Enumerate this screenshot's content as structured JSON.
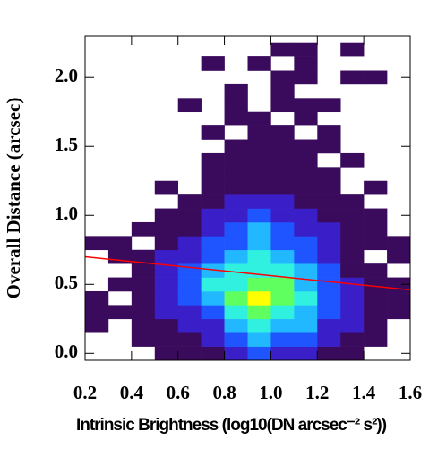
{
  "chart_data": {
    "type": "heatmap",
    "xlabel": "Intrinsic Brightness (log10(DN arcsec⁻² s²))",
    "ylabel": "Overall Distance (arcsec)",
    "xlim": [
      0.2,
      1.6
    ],
    "ylim": [
      -0.05,
      2.3
    ],
    "xticks": [
      0.2,
      0.4,
      0.6,
      0.8,
      {
        "value": 1,
        "label": "1.0"
      },
      1.2,
      1.4,
      1.6
    ],
    "yticks": [
      {
        "value": 0,
        "label": "0.0"
      },
      0.5,
      {
        "value": 1,
        "label": "1.0"
      },
      1.5,
      {
        "value": 2,
        "label": "2.0"
      }
    ],
    "x_edges": [
      0.2,
      0.3,
      0.4,
      0.5,
      0.6,
      0.7,
      0.8,
      0.9,
      1.0,
      1.1,
      1.2,
      1.3,
      1.4,
      1.5,
      1.6
    ],
    "y_edges": [
      -0.05,
      0.05,
      0.15,
      0.25,
      0.35,
      0.45,
      0.55,
      0.65,
      0.75,
      0.85,
      0.95,
      1.05,
      1.15,
      1.25,
      1.35,
      1.45,
      1.55,
      1.65,
      1.75,
      1.85,
      1.95,
      2.05,
      2.15,
      2.25
    ],
    "z": [
      [
        0,
        0,
        0,
        1,
        1,
        1,
        2,
        3,
        2,
        2,
        1,
        1,
        0,
        0
      ],
      [
        0,
        0,
        1,
        1,
        1,
        2,
        3,
        4,
        3,
        3,
        2,
        1,
        1,
        0
      ],
      [
        1,
        0,
        1,
        1,
        2,
        2,
        4,
        5,
        4,
        4,
        2,
        2,
        1,
        0
      ],
      [
        1,
        1,
        1,
        2,
        2,
        3,
        5,
        6,
        5,
        4,
        3,
        2,
        1,
        1
      ],
      [
        1,
        0,
        1,
        2,
        3,
        4,
        6,
        7,
        6,
        5,
        3,
        2,
        1,
        1
      ],
      [
        0,
        1,
        1,
        2,
        3,
        5,
        5,
        6,
        6,
        4,
        3,
        2,
        1,
        1
      ],
      [
        0,
        0,
        1,
        2,
        3,
        4,
        5,
        5,
        5,
        4,
        3,
        1,
        1,
        0
      ],
      [
        0,
        1,
        1,
        2,
        2,
        3,
        4,
        5,
        4,
        3,
        2,
        1,
        0,
        1
      ],
      [
        1,
        1,
        0,
        1,
        2,
        3,
        3,
        4,
        3,
        3,
        2,
        1,
        1,
        1
      ],
      [
        0,
        0,
        1,
        1,
        1,
        2,
        3,
        4,
        3,
        2,
        2,
        1,
        1,
        0
      ],
      [
        0,
        0,
        0,
        1,
        1,
        2,
        2,
        3,
        2,
        2,
        1,
        1,
        1,
        0
      ],
      [
        0,
        0,
        0,
        0,
        1,
        1,
        2,
        2,
        2,
        1,
        1,
        1,
        0,
        0
      ],
      [
        0,
        0,
        0,
        1,
        0,
        1,
        1,
        1,
        1,
        1,
        1,
        0,
        1,
        0
      ],
      [
        0,
        0,
        0,
        0,
        0,
        1,
        1,
        1,
        1,
        1,
        1,
        0,
        0,
        0
      ],
      [
        0,
        0,
        0,
        0,
        0,
        1,
        1,
        1,
        1,
        1,
        0,
        1,
        0,
        0
      ],
      [
        0,
        0,
        0,
        0,
        0,
        0,
        1,
        1,
        1,
        1,
        1,
        0,
        0,
        0
      ],
      [
        0,
        0,
        0,
        0,
        0,
        1,
        0,
        1,
        1,
        0,
        1,
        0,
        0,
        0
      ],
      [
        0,
        0,
        0,
        0,
        0,
        0,
        1,
        1,
        0,
        1,
        0,
        0,
        0,
        0
      ],
      [
        0,
        0,
        0,
        0,
        1,
        0,
        1,
        0,
        1,
        1,
        1,
        0,
        0,
        0
      ],
      [
        0,
        0,
        0,
        0,
        0,
        0,
        1,
        0,
        1,
        0,
        0,
        0,
        0,
        0
      ],
      [
        0,
        0,
        0,
        0,
        0,
        0,
        0,
        0,
        1,
        1,
        0,
        1,
        1,
        0
      ],
      [
        0,
        0,
        0,
        0,
        0,
        1,
        0,
        1,
        0,
        1,
        0,
        0,
        0,
        0
      ],
      [
        0,
        0,
        0,
        0,
        0,
        0,
        0,
        0,
        1,
        1,
        0,
        1,
        0,
        0
      ]
    ],
    "colors": [
      "#3a0a5c",
      "#3a1ec8",
      "#1f55ff",
      "#22b8ff",
      "#30f0e0",
      "#60ff60",
      "#ffff00"
    ],
    "fit": {
      "x": [
        0.2,
        1.6
      ],
      "y": [
        0.7,
        0.46
      ],
      "color": "#ff0000"
    }
  }
}
